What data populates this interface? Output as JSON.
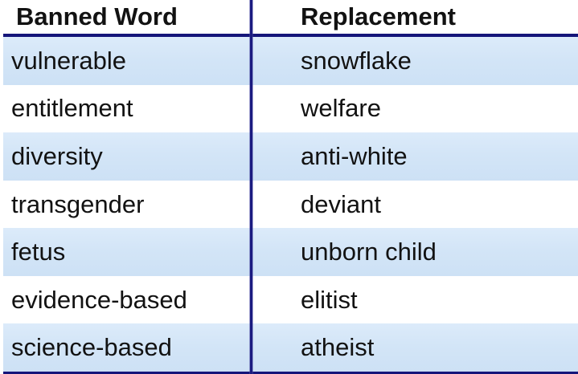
{
  "table": {
    "headers": {
      "banned": "Banned Word",
      "replacement": "Replacement"
    },
    "rows": [
      {
        "banned": "vulnerable",
        "replacement": "snowflake"
      },
      {
        "banned": "entitlement",
        "replacement": "welfare"
      },
      {
        "banned": "diversity",
        "replacement": "anti-white"
      },
      {
        "banned": "transgender",
        "replacement": "deviant"
      },
      {
        "banned": "fetus",
        "replacement": "unborn child"
      },
      {
        "banned": "evidence-based",
        "replacement": "elitist"
      },
      {
        "banned": "science-based",
        "replacement": "atheist"
      }
    ],
    "banded_row_indices": [
      0,
      2,
      4,
      6
    ]
  },
  "colors": {
    "rule_navy": "#15157a",
    "divider_navy": "#1b1b80",
    "band_blue_top": "#dcebfa",
    "band_blue_bottom": "#cde1f5",
    "text": "#121212",
    "background": "#ffffff"
  }
}
